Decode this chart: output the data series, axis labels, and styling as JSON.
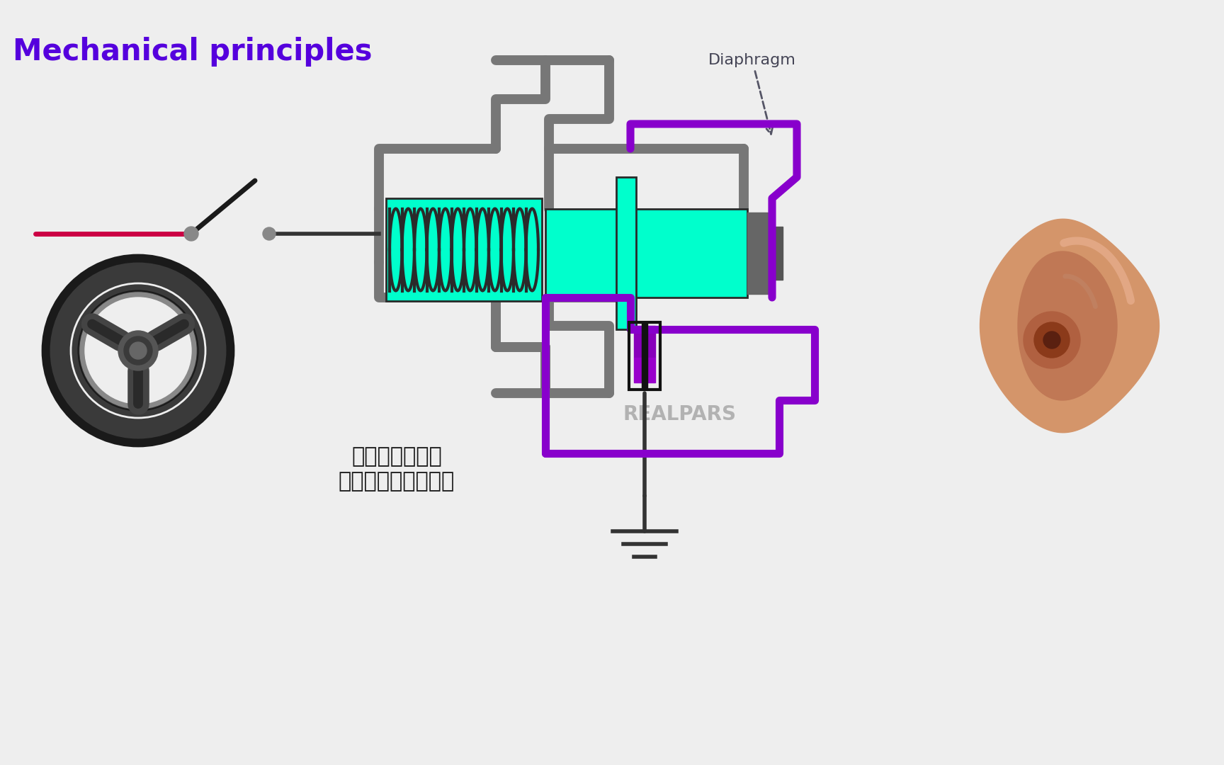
{
  "title": "Mechanical principles",
  "title_color": "#5500DD",
  "title_fontsize": 30,
  "bg_color": "#EEEEEE",
  "subtitle_zh_line1": "听到汽车唷叭是",
  "subtitle_zh_line2": "因为快速振动的隔膜",
  "subtitle_color": "#1a1a1a",
  "subtitle_fontsize": 22,
  "diaphragm_label": "Diaphragm",
  "diaphragm_label_color": "#444455",
  "realpars_color": "#999999",
  "cyan_color": "#00FFCC",
  "purple_outline_color": "#8800CC",
  "gray_pipe_color": "#777777",
  "dark_color": "#333333",
  "red_bar_color": "#CC0044",
  "gray_dot_color": "#888888",
  "magenta_block_color": "#9900CC",
  "dark_block_color": "#1a1a1a",
  "gray_block_color": "#666666",
  "ear_skin1": "#D4956A",
  "ear_skin2": "#C07855",
  "ear_dark": "#8B4513",
  "sw_dark": "#2a2a2a",
  "sw_mid": "#444444",
  "sw_hub": "#555555"
}
